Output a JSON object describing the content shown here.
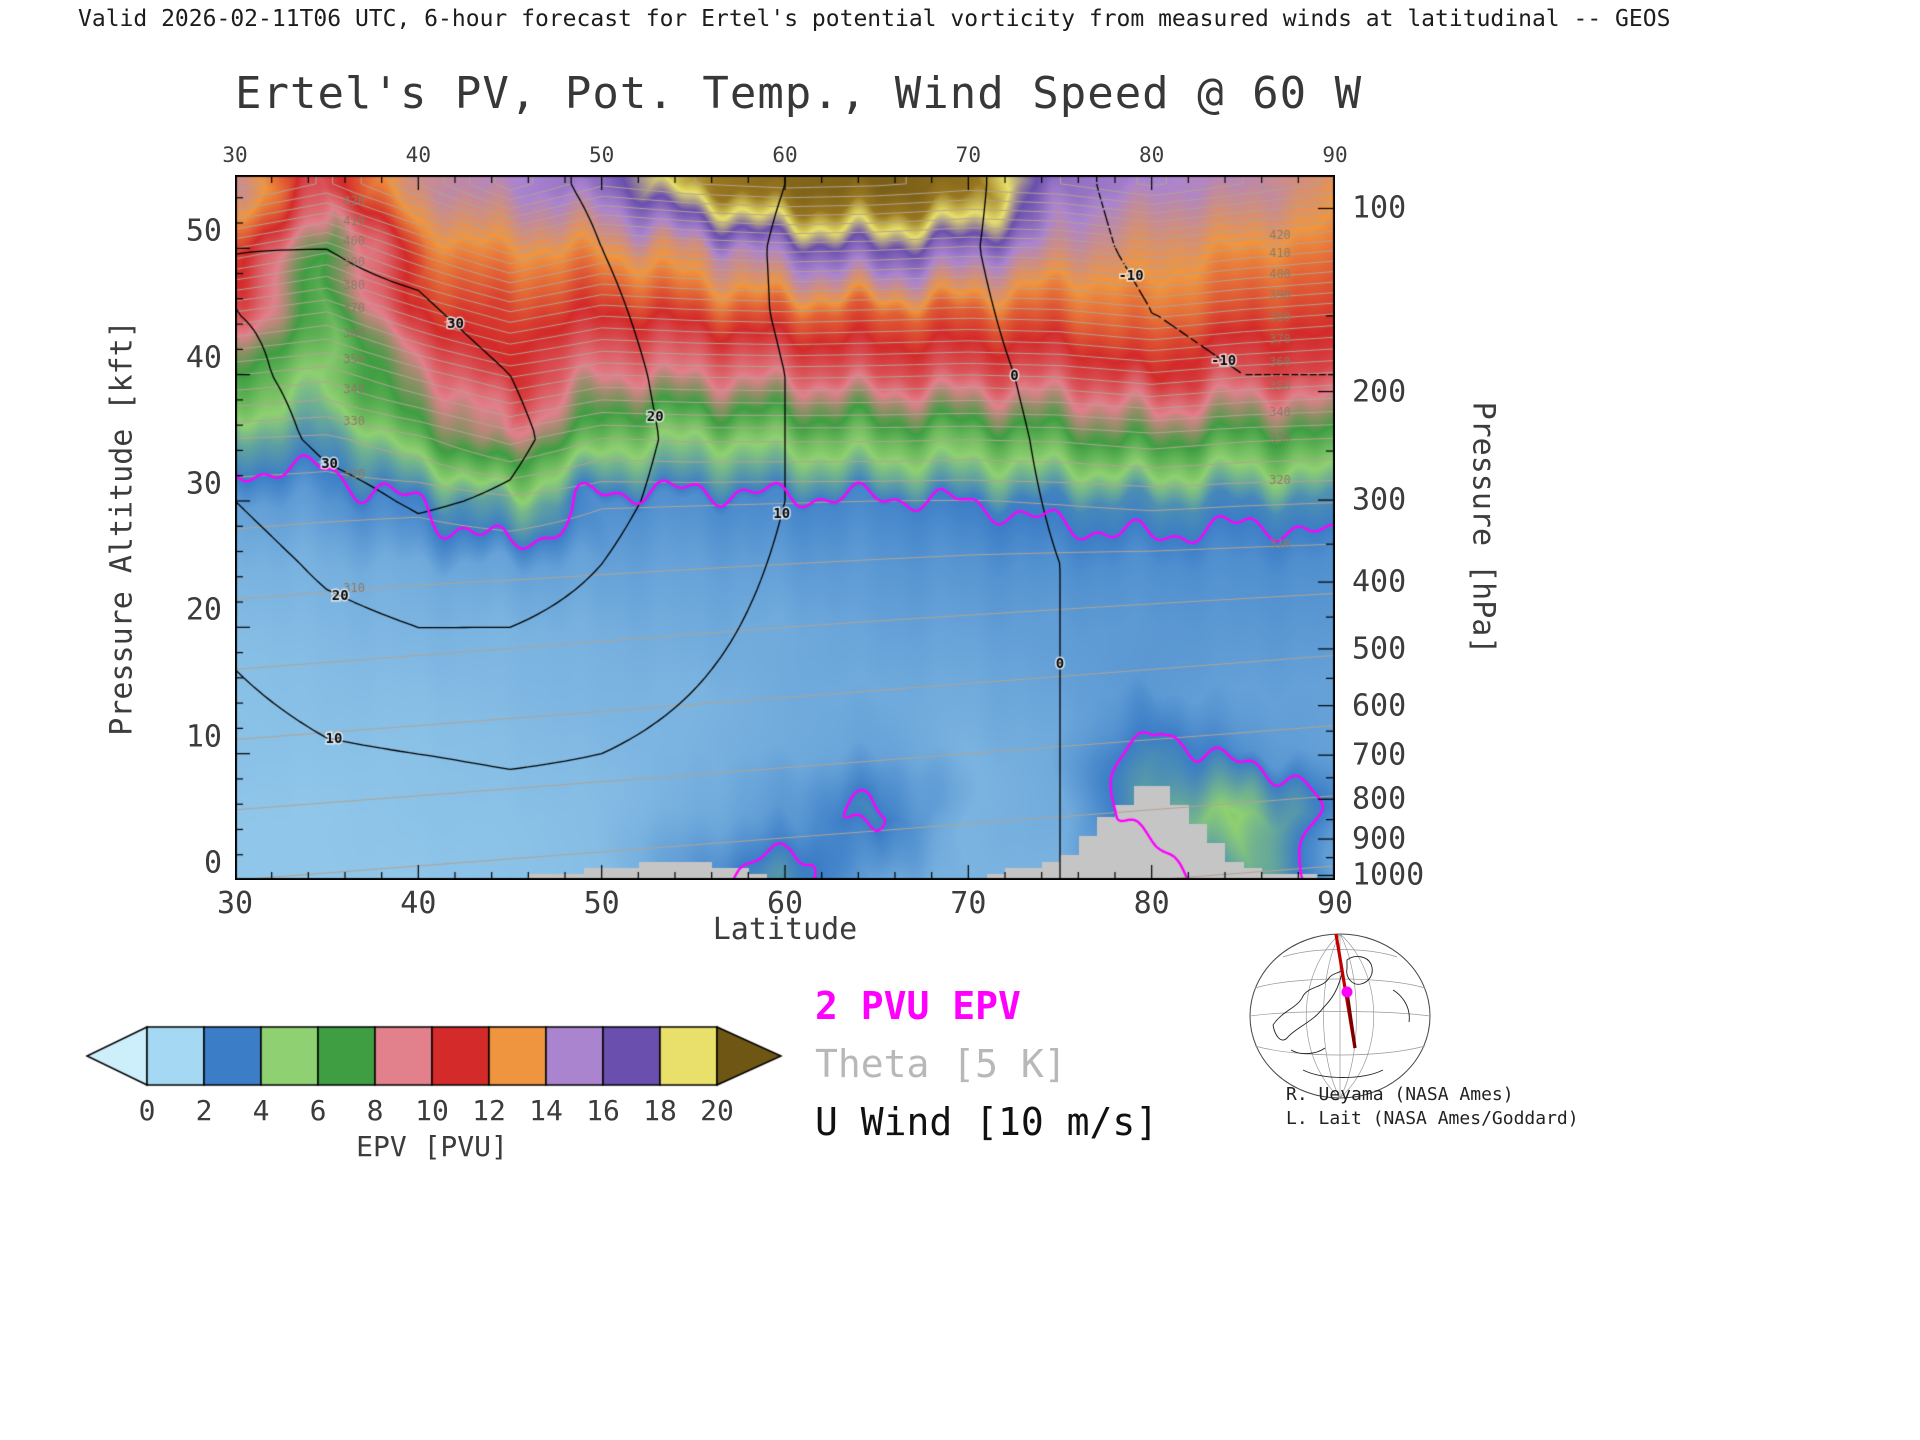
{
  "header": "Valid 2026-02-11T06 UTC, 6-hour forecast for Ertel's potential vorticity from measured winds at latitudinal -- GEOS",
  "title": "Ertel's PV, Pot. Temp., Wind Speed @ 60 W",
  "legend": {
    "pv_line": "2 PVU EPV",
    "theta": "Theta [5 K]",
    "uwind": "U Wind [10 m/s]",
    "pv_color": "#ff00ff",
    "theta_color": "#b8b8b8",
    "uwind_color": "#111111"
  },
  "credits": [
    "R. Ueyama (NASA Ames)",
    "L. Lait (NASA Ames/Goddard)"
  ],
  "axes": {
    "x": {
      "label": "Latitude",
      "min": 30,
      "max": 90,
      "major_ticks": [
        30,
        40,
        50,
        60,
        70,
        80,
        90
      ],
      "minor_step": 2
    },
    "y_left": {
      "label": "Pressure Altitude [kft]",
      "min": 0,
      "max": 55.8,
      "major_ticks": [
        0,
        10,
        20,
        30,
        40,
        50
      ],
      "minor_step": 2
    },
    "y_right": {
      "label": "Pressure [hPa]",
      "major_ticks": [
        [
          100,
          53.15
        ],
        [
          200,
          38.66
        ],
        [
          300,
          30.07
        ],
        [
          400,
          23.58
        ],
        [
          500,
          18.29
        ],
        [
          600,
          13.8
        ],
        [
          700,
          9.88
        ],
        [
          800,
          6.39
        ],
        [
          900,
          3.24
        ],
        [
          1000,
          0.36
        ]
      ],
      "minor_alts": [
        44.65,
        33.95,
        26.58,
        20.81,
        15.96,
        11.78,
        8.09,
        4.78,
        1.77
      ]
    }
  },
  "colorbar": {
    "label": "EPV [PVU]",
    "tick_labels": [
      0,
      2,
      4,
      6,
      8,
      10,
      12,
      14,
      16,
      18,
      20
    ]
  },
  "chart_data": {
    "type": "filled_contour_cross_section",
    "slice_longitude": "60 W",
    "x_field": "latitude_deg",
    "y_field": "pressure_altitude_kft",
    "fill_field": "EPV [PVU]",
    "grid_lats": [
      30,
      35,
      40,
      45,
      50,
      55,
      60,
      65,
      70,
      75,
      80,
      85,
      90
    ],
    "grid_alts_kft": [
      0,
      5,
      10,
      15,
      20,
      25,
      30,
      35,
      40,
      45,
      50,
      55
    ],
    "epv_pvu": [
      [
        0.4,
        0.4,
        0.4,
        0.5,
        0.6,
        1.4,
        2.6,
        1.0,
        0.8,
        0.8,
        1.0,
        3.2,
        1.2
      ],
      [
        0.4,
        0.4,
        0.5,
        0.5,
        0.6,
        1.0,
        1.4,
        2.3,
        0.8,
        1.0,
        2.8,
        4.2,
        1.5
      ],
      [
        0.5,
        0.5,
        0.5,
        0.6,
        0.7,
        0.8,
        1.0,
        1.2,
        0.8,
        1.0,
        2.4,
        1.5,
        1.2
      ],
      [
        0.5,
        0.6,
        0.6,
        0.7,
        0.8,
        0.8,
        1.0,
        1.0,
        1.0,
        1.2,
        1.4,
        1.2,
        1.2
      ],
      [
        0.6,
        0.7,
        0.8,
        0.8,
        0.9,
        1.0,
        1.0,
        1.2,
        1.2,
        1.3,
        1.4,
        1.4,
        1.4
      ],
      [
        0.8,
        0.9,
        1.0,
        1.2,
        1.2,
        1.2,
        1.3,
        1.4,
        1.5,
        1.6,
        1.6,
        1.6,
        1.6
      ],
      [
        1.2,
        1.4,
        2.0,
        3.5,
        1.6,
        1.6,
        1.8,
        1.8,
        2.0,
        2.2,
        2.5,
        2.2,
        2.5
      ],
      [
        3.0,
        2.5,
        5.0,
        8.0,
        4.5,
        4.0,
        4.5,
        5.0,
        5.0,
        5.5,
        6.5,
        5.5,
        6.0
      ],
      [
        6.0,
        4.0,
        8.0,
        10.0,
        8.0,
        8.0,
        8.5,
        9.0,
        9.0,
        9.0,
        10.0,
        9.0,
        9.5
      ],
      [
        9.0,
        5.0,
        10.0,
        10.5,
        10.0,
        10.5,
        11.0,
        11.0,
        11.0,
        11.0,
        11.5,
        10.5,
        10.5
      ],
      [
        11.0,
        6.0,
        11.5,
        12.0,
        12.0,
        13.0,
        15.0,
        16.0,
        15.0,
        13.0,
        12.5,
        12.0,
        11.5
      ],
      [
        13.0,
        9.0,
        13.0,
        14.0,
        15.0,
        19.0,
        22.0,
        23.0,
        21.0,
        15.0,
        14.0,
        13.5,
        12.5
      ]
    ],
    "theta_k": [
      [
        290,
        289.5,
        289,
        288.5,
        288,
        287.5,
        287,
        286.5,
        286,
        285.5,
        285,
        284.5,
        284
      ],
      [
        294.5,
        294,
        293.5,
        293,
        292.5,
        292,
        291.5,
        291,
        290.5,
        290,
        289.5,
        289,
        288.5
      ],
      [
        299,
        298.5,
        298,
        297.5,
        297,
        296.5,
        296,
        295.5,
        295,
        294.5,
        294,
        293.5,
        293
      ],
      [
        303.5,
        303,
        302.5,
        302,
        301.5,
        301,
        300.5,
        300,
        299.5,
        299,
        298.5,
        298,
        297.5
      ],
      [
        308,
        307.5,
        307,
        306.5,
        306,
        305.5,
        305,
        304.5,
        304,
        303.5,
        303,
        302.5,
        302
      ],
      [
        312.5,
        312,
        311.5,
        311.2,
        310.8,
        310.4,
        310,
        309.6,
        309.2,
        308.8,
        308.4,
        308,
        307.6
      ],
      [
        317,
        316.5,
        316.2,
        318.5,
        315.6,
        315.4,
        315.2,
        315,
        314.8,
        315.4,
        316.2,
        315.6,
        315.2
      ],
      [
        325,
        324,
        329,
        337,
        330,
        331,
        331,
        331,
        330.5,
        331,
        333,
        331,
        330
      ],
      [
        345,
        342,
        352,
        361,
        355,
        356,
        356.5,
        356,
        355,
        356,
        359,
        356,
        354
      ],
      [
        370,
        365,
        378,
        390,
        382,
        384,
        385,
        384,
        383,
        384,
        388,
        384,
        381
      ],
      [
        400,
        392,
        408,
        423,
        412,
        415,
        417,
        416,
        414,
        415,
        420,
        415,
        411
      ],
      [
        433,
        424,
        440,
        458,
        446,
        450,
        452,
        451,
        448,
        450,
        456,
        450,
        444
      ]
    ],
    "uwind_ms": [
      [
        2,
        3,
        3,
        4,
        5,
        5,
        3,
        2,
        1,
        0,
        -1,
        -2,
        -2
      ],
      [
        4,
        6,
        6,
        7,
        7,
        6,
        4,
        3,
        2,
        0,
        -2,
        -3,
        -3
      ],
      [
        6,
        9,
        10,
        11,
        10,
        8,
        5,
        4,
        3,
        0,
        -3,
        -4,
        -4
      ],
      [
        9,
        13,
        15,
        15,
        13,
        10,
        7,
        5,
        3,
        0,
        -4,
        -5,
        -5
      ],
      [
        12,
        17,
        20,
        20,
        17,
        12,
        8,
        6,
        4,
        0,
        -5,
        -6,
        -6
      ],
      [
        15,
        22,
        26,
        25,
        20,
        14,
        9,
        7,
        4,
        0,
        -6,
        -7,
        -7
      ],
      [
        20,
        27,
        31,
        29,
        23,
        16,
        10,
        7,
        4,
        -1,
        -7,
        -8,
        -8
      ],
      [
        25,
        32,
        35,
        32,
        25,
        17,
        10,
        7,
        4,
        -2,
        -8,
        -9,
        -9
      ],
      [
        28,
        33,
        34,
        30,
        24,
        16,
        10,
        6,
        3,
        -3,
        -9,
        -10,
        -10
      ],
      [
        30,
        32,
        31,
        27,
        22,
        15,
        9,
        5,
        2,
        -5,
        -10,
        -11,
        -11
      ],
      [
        30,
        30,
        28,
        24,
        20,
        14,
        9,
        5,
        1,
        -7,
        -12,
        -12,
        -12
      ],
      [
        28,
        27,
        25,
        22,
        19,
        14,
        10,
        6,
        2,
        -8,
        -13,
        -13,
        -13
      ]
    ],
    "terrain_kft": [
      0,
      0,
      0,
      0,
      1.0,
      1.5,
      0,
      0,
      0,
      1.5,
      8.0,
      1.0,
      0
    ],
    "terrain_color": "#c5c5c5",
    "colormap": {
      "levels": [
        -2,
        0,
        2,
        4,
        6,
        8,
        10,
        12,
        14,
        16,
        18,
        20,
        24
      ],
      "colors": [
        "#cdeefb",
        "#a5d8f2",
        "#3b7dc6",
        "#8fd072",
        "#3f9e42",
        "#e2808c",
        "#d42a2a",
        "#f0953f",
        "#ab84d0",
        "#6a4fae",
        "#e8e06a",
        "#97761f",
        "#6f5614"
      ]
    },
    "contours": {
      "epv_highlight": {
        "level": 2,
        "color": "#ff00ff",
        "width": 2.4
      },
      "theta": {
        "interval_k": 5,
        "min": 285,
        "max": 455,
        "color": "#b3a393",
        "width": 1
      },
      "uwind": {
        "interval_ms": 10,
        "min": -30,
        "max": 40,
        "color": "#000000",
        "width": 1.3,
        "negative_dashed": true
      }
    },
    "contour_labels": {
      "theta": {
        "levels": [
          310,
          320,
          330,
          340,
          350,
          360,
          370,
          380,
          390,
          400,
          410,
          420
        ],
        "label_lats": [
          36.5,
          87
        ],
        "color": "#8d7a66"
      },
      "uwind": {
        "levels": [
          -10,
          0,
          10,
          20,
          30
        ]
      }
    }
  }
}
